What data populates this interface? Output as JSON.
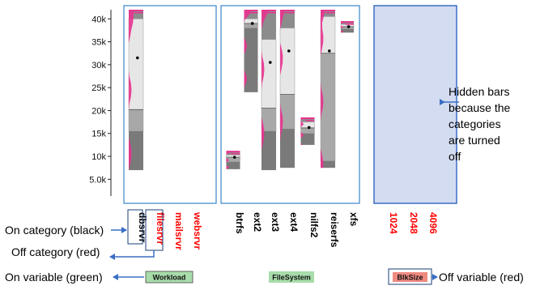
{
  "chart_data": {
    "type": "box",
    "y_ticks": [
      "5.0k",
      "10k",
      "15k",
      "20k",
      "25k",
      "30k",
      "35k",
      "40k"
    ],
    "y_tick_values": [
      5000,
      10000,
      15000,
      20000,
      25000,
      30000,
      35000,
      40000
    ],
    "ylim": [
      2500,
      42000
    ],
    "panels": [
      {
        "variable": "Workload",
        "variable_state": "on",
        "categories": [
          {
            "label": "dbsrvr",
            "state": "on",
            "min": 7000,
            "q1": 15500,
            "median": 20200,
            "q3": 40000,
            "max": 42000,
            "mean": 31500
          },
          {
            "label": "filesrvr",
            "state": "off"
          },
          {
            "label": "mailsrvr",
            "state": "off"
          },
          {
            "label": "websrvr",
            "state": "off"
          }
        ]
      },
      {
        "variable": "FileSystem",
        "variable_state": "on",
        "categories": [
          {
            "label": "btrfs",
            "state": "on",
            "min": 7200,
            "q1": 8800,
            "median": 9800,
            "q3": 10300,
            "max": 11200,
            "mean": 9800
          },
          {
            "label": "ext2",
            "state": "on",
            "min": 24000,
            "q1": 38000,
            "median": 39000,
            "q3": 40000,
            "max": 42000,
            "mean": 39000
          },
          {
            "label": "ext3",
            "state": "on",
            "min": 7000,
            "q1": 15500,
            "median": 20500,
            "q3": 35500,
            "max": 42000,
            "mean": 30500
          },
          {
            "label": "ext4",
            "state": "on",
            "min": 7500,
            "q1": 16000,
            "median": 23500,
            "q3": 38000,
            "max": 42000,
            "mean": 33000
          },
          {
            "label": "nilfs2",
            "state": "on",
            "min": 12500,
            "q1": 15000,
            "median": 16200,
            "q3": 17500,
            "max": 18500,
            "mean": 16300
          },
          {
            "label": "reiserfs",
            "state": "on",
            "min": 7500,
            "q1": 9000,
            "median": 32500,
            "q3": 40500,
            "max": 42000,
            "mean": 33000
          },
          {
            "label": "xfs",
            "state": "on",
            "min": 37000,
            "q1": 37800,
            "median": 38300,
            "q3": 38800,
            "max": 39500,
            "mean": 38300
          }
        ]
      },
      {
        "variable": "BlkSize",
        "variable_state": "off",
        "categories": [
          {
            "label": "1024",
            "state": "off"
          },
          {
            "label": "2048",
            "state": "off"
          },
          {
            "label": "4096",
            "state": "off"
          }
        ]
      }
    ]
  },
  "colors": {
    "panel_border": "#3a86c8",
    "hidden_fill": "#d4dcf2",
    "on_category": "#000000",
    "off_category": "#ff0000",
    "on_variable": "#a8dcaa",
    "off_variable": "#f08a80",
    "density": "#e8338f",
    "annotation_arrow": "#3a6fc4"
  },
  "annotations": {
    "on_category": "On category (black)",
    "off_category": "Off category (red)",
    "on_variable": "On variable (green)",
    "off_variable": "Off variable (red)",
    "hidden_bars": [
      "Hidden bars",
      "because the",
      "categories",
      "are turned",
      "off"
    ]
  }
}
